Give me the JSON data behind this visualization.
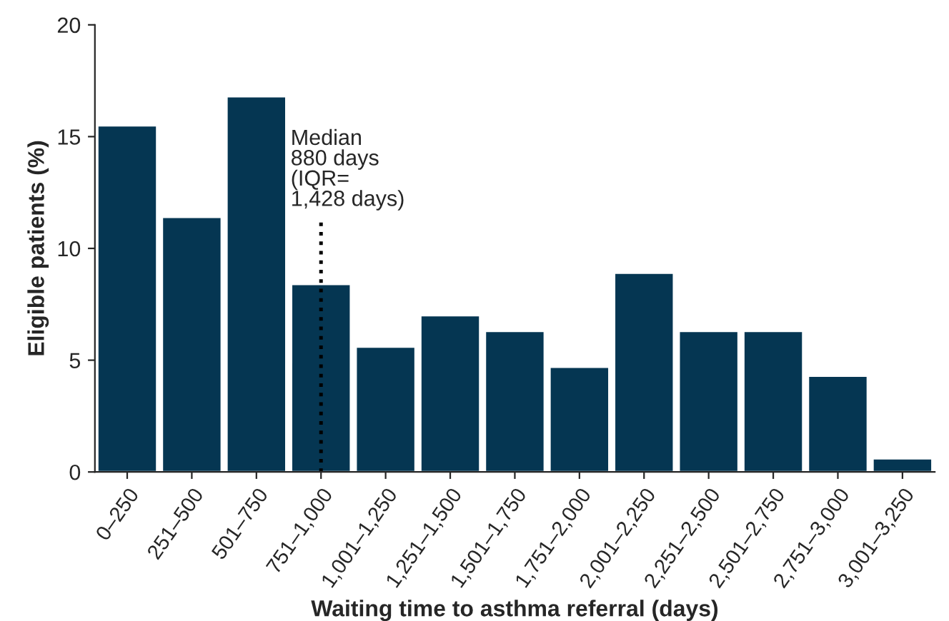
{
  "chart_data": {
    "type": "bar",
    "xlabel": "Waiting time to asthma referral (days)",
    "ylabel": "Eligible patients (%)",
    "categories": [
      "0–250",
      "251–500",
      "501–750",
      "751–1,000",
      "1,001–1,250",
      "1,251–1,500",
      "1,501–1,750",
      "1,751–2,000",
      "2,001–2,250",
      "2,251–2,500",
      "2,501–2,750",
      "2,751–3,000",
      "3,001–3,250"
    ],
    "values": [
      15.5,
      11.4,
      16.8,
      8.4,
      5.6,
      7.0,
      6.3,
      4.7,
      8.9,
      6.3,
      6.3,
      4.3,
      0.6
    ],
    "color": "#053652",
    "ylim": [
      0,
      20
    ],
    "yticks": [
      0,
      5,
      10,
      15,
      20
    ],
    "grid": false,
    "legend": false,
    "annotations": [
      {
        "text": "Median\n880 days\n(IQR=\n1,428 days)",
        "x": "751–1,000",
        "y": 0
      }
    ]
  }
}
